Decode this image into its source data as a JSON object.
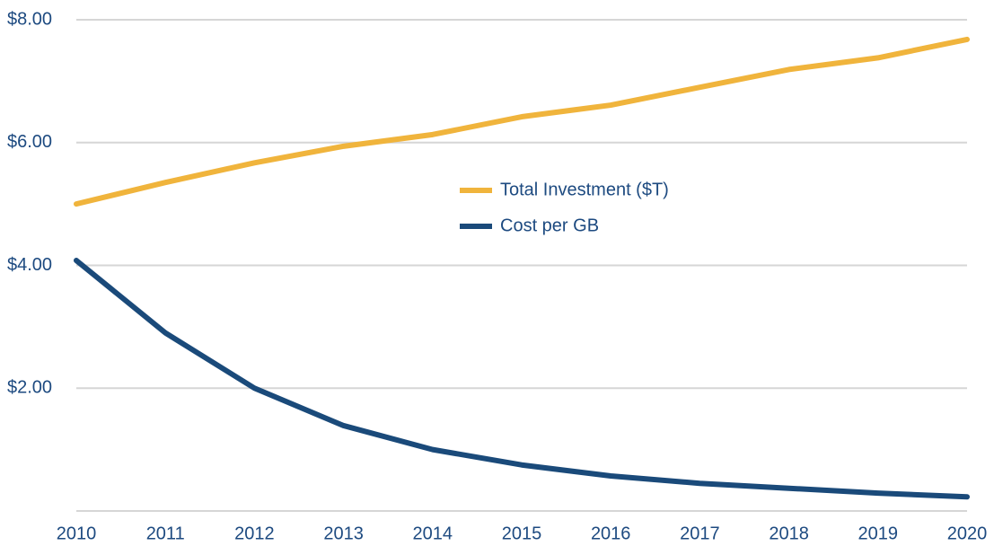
{
  "chart_data": {
    "type": "line",
    "x": [
      2010,
      2011,
      2012,
      2013,
      2014,
      2015,
      2016,
      2017,
      2018,
      2019,
      2020
    ],
    "xlim": [
      2010,
      2020
    ],
    "xticks": [
      2010,
      2011,
      2012,
      2013,
      2014,
      2015,
      2016,
      2017,
      2018,
      2019,
      2020
    ],
    "ylim": [
      0,
      8
    ],
    "yticks": [
      {
        "value": 2,
        "label": "$2.00"
      },
      {
        "value": 4,
        "label": "$4.00"
      },
      {
        "value": 6,
        "label": "$6.00"
      },
      {
        "value": 8,
        "label": "$8.00"
      }
    ],
    "grid": true,
    "series": [
      {
        "name": "Total Investment ($T)",
        "color": "#f0b43c",
        "values": [
          5.0,
          5.35,
          5.67,
          5.94,
          6.13,
          6.42,
          6.61,
          6.9,
          7.19,
          7.38,
          7.68
        ]
      },
      {
        "name": "Cost per GB",
        "color": "#1a4a7a",
        "values": [
          4.08,
          2.9,
          2.0,
          1.39,
          1.0,
          0.75,
          0.57,
          0.45,
          0.37,
          0.29,
          0.23
        ]
      }
    ]
  }
}
